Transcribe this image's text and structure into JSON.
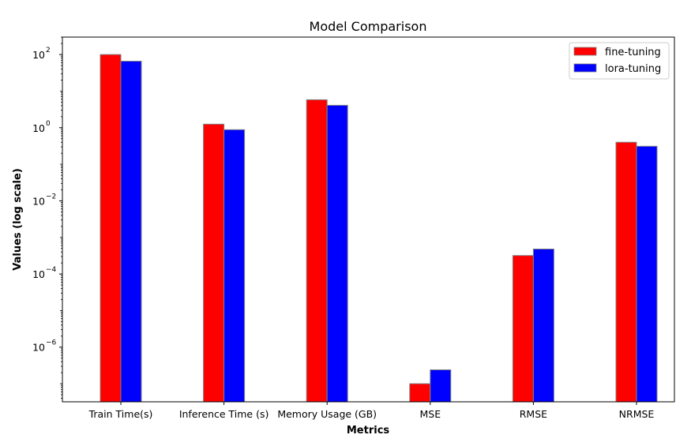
{
  "chart_data": {
    "type": "bar",
    "title": "Model Comparison",
    "xlabel": "Metrics",
    "ylabel": "Values (log scale)",
    "yscale": "log",
    "ylim": [
      3.2e-08,
      300
    ],
    "yticks": [
      {
        "value": 1e-06,
        "base": "10",
        "exp": "−6"
      },
      {
        "value": 0.0001,
        "base": "10",
        "exp": "−4"
      },
      {
        "value": 0.01,
        "base": "10",
        "exp": "−2"
      },
      {
        "value": 1,
        "base": "10",
        "exp": "0"
      },
      {
        "value": 100,
        "base": "10",
        "exp": "2"
      }
    ],
    "categories": [
      "Train Time(s)",
      "Inference Time (s)",
      "Memory Usage (GB)",
      "MSE",
      "RMSE",
      "NRMSE"
    ],
    "series": [
      {
        "name": "fine-tuning",
        "color": "#ff0000",
        "values": [
          100,
          1.25,
          5.8,
          1e-07,
          0.00032,
          0.4
        ]
      },
      {
        "name": "lora-tuning",
        "color": "#0000ff",
        "values": [
          66,
          0.88,
          4.1,
          2.4e-07,
          0.00048,
          0.31
        ]
      }
    ],
    "legend": "top-right",
    "grid": false,
    "bar_edge_color": "#808080"
  }
}
